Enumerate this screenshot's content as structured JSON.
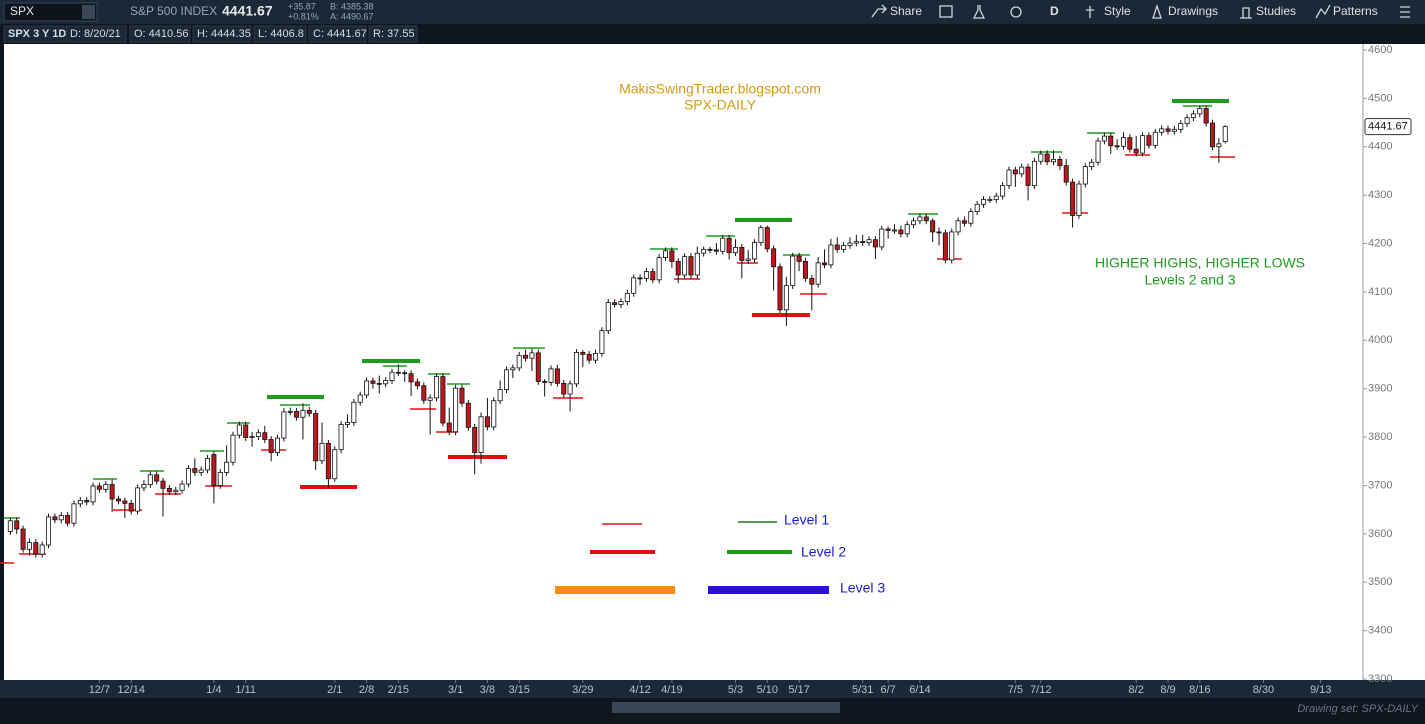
{
  "toolbar": {
    "symbol": "SPX",
    "description": "S&P 500 INDEX",
    "last": "4441.67",
    "change": "+35.87",
    "change_pct": "+0.81%",
    "bid": "B: 4385.38",
    "ask": "A: 4490.67",
    "buttons": [
      "Share",
      "D",
      "Style",
      "Drawings",
      "Studies",
      "Patterns"
    ]
  },
  "info": [
    "SPX 3 Y 1D",
    "D: 8/20/21",
    "O: 4410.56",
    "H: 4444.35",
    "L: 4406.8",
    "C: 4441.67",
    "R: 37.55"
  ],
  "footer": "Drawing set: SPX-DAILY",
  "chart_data": {
    "type": "candlestick",
    "annotations": [
      "MakisSwingTrader.blogspot.com",
      "SPX-DAILY",
      "HIGHER HIGHS, HIGHER LOWS",
      "Levels 2 and 3"
    ],
    "legend": [
      "Level 1",
      "Level 2",
      "Level 3"
    ],
    "up_color": "#ffffff",
    "down_color": "#c0161b",
    "wick_color": "#111111",
    "ylim": [
      3300,
      4600
    ],
    "yticks": [
      3300,
      3400,
      3500,
      3600,
      3700,
      3800,
      3900,
      4000,
      4100,
      4200,
      4300,
      4400,
      4500,
      4600
    ],
    "xlim": [
      -1,
      212.5
    ],
    "xticks": [
      {
        "value": 14,
        "label": "12/7"
      },
      {
        "value": 19,
        "label": "12/14"
      },
      {
        "value": 32,
        "label": "1/4"
      },
      {
        "value": 37,
        "label": "1/11"
      },
      {
        "value": 51,
        "label": "2/1"
      },
      {
        "value": 56,
        "label": "2/8"
      },
      {
        "value": 61,
        "label": "2/15"
      },
      {
        "value": 70,
        "label": "3/1"
      },
      {
        "value": 75,
        "label": "3/8"
      },
      {
        "value": 80,
        "label": "3/15"
      },
      {
        "value": 90,
        "label": "3/29"
      },
      {
        "value": 99,
        "label": "4/12"
      },
      {
        "value": 104,
        "label": "4/19"
      },
      {
        "value": 114,
        "label": "5/3"
      },
      {
        "value": 119,
        "label": "5/10"
      },
      {
        "value": 124,
        "label": "5/17"
      },
      {
        "value": 134,
        "label": "5/31"
      },
      {
        "value": 138,
        "label": "6/7"
      },
      {
        "value": 143,
        "label": "6/14"
      },
      {
        "value": 158,
        "label": "7/5"
      },
      {
        "value": 162,
        "label": "7/12"
      },
      {
        "value": 177,
        "label": "8/2"
      },
      {
        "value": 182,
        "label": "8/9"
      },
      {
        "value": 187,
        "label": "8/16"
      },
      {
        "value": 197,
        "label": "8/30"
      },
      {
        "value": 206,
        "label": "9/13"
      }
    ],
    "candles": {
      "open": [
        3605,
        3627,
        3610,
        3568,
        3582,
        3558,
        3577,
        3635,
        3629,
        3638,
        3622,
        3662,
        3669,
        3666,
        3699,
        3692,
        3702,
        3672,
        3668,
        3663,
        3647,
        3695,
        3702,
        3722,
        3709,
        3694,
        3687,
        3690,
        3703,
        3735,
        3727,
        3732,
        3764,
        3700,
        3727,
        3748,
        3804,
        3825,
        3799,
        3801,
        3809,
        3795,
        3768,
        3798,
        3852,
        3853,
        3841,
        3855,
        3849,
        3751,
        3787,
        3714,
        3774,
        3826,
        3830,
        3872,
        3887,
        3916,
        3911,
        3910,
        3917,
        3934,
        3933,
        3931,
        3914,
        3906,
        3876,
        3881,
        3925,
        3829,
        3811,
        3901,
        3870,
        3820,
        3768,
        3842,
        3821,
        3875,
        3898,
        3939,
        3943,
        3969,
        3963,
        3974,
        3915,
        3913,
        3941,
        3911,
        3889,
        3910,
        3975,
        3971,
        3959,
        3973,
        4020,
        4078,
        4074,
        4080,
        4097,
        4129,
        4128,
        4142,
        4125,
        4171,
        4185,
        4163,
        4135,
        4173,
        4135,
        4180,
        4188,
        4187,
        4184,
        4211,
        4181,
        4192,
        4165,
        4168,
        4202,
        4233,
        4189,
        4152,
        4063,
        4113,
        4174,
        4163,
        4128,
        4116,
        4160,
        4156,
        4197,
        4188,
        4196,
        4201,
        4204,
        4202,
        4208,
        4193,
        4230,
        4227,
        4228,
        4220,
        4239,
        4247,
        4255,
        4247,
        4224,
        4222,
        4166,
        4224,
        4247,
        4242,
        4266,
        4281,
        4291,
        4291,
        4298,
        4320,
        4352,
        4344,
        4358,
        4320,
        4370,
        4385,
        4369,
        4374,
        4361,
        4327,
        4258,
        4323,
        4359,
        4368,
        4412,
        4422,
        4402,
        4401,
        4419,
        4395,
        4387,
        4423,
        4403,
        4430,
        4437,
        4432,
        4436,
        4448,
        4460,
        4468,
        4479,
        4449,
        4400,
        4410.56
      ],
      "high": [
        3634,
        3634,
        3617,
        3590,
        3589,
        3584,
        3642,
        3642,
        3645,
        3645,
        3669,
        3676,
        3676,
        3706,
        3706,
        3709,
        3712,
        3679,
        3675,
        3670,
        3702,
        3711,
        3729,
        3729,
        3716,
        3701,
        3697,
        3710,
        3742,
        3756,
        3739,
        3763,
        3770,
        3734,
        3783,
        3811,
        3832,
        3832,
        3811,
        3816,
        3823,
        3802,
        3805,
        3860,
        3861,
        3860,
        3870,
        3862,
        3856,
        3830,
        3794,
        3781,
        3833,
        3847,
        3879,
        3894,
        3923,
        3923,
        3927,
        3924,
        3941,
        3950,
        3938,
        3938,
        3921,
        3913,
        3888,
        3932,
        3932,
        3861,
        3908,
        3908,
        3877,
        3827,
        3851,
        3881,
        3882,
        3917,
        3946,
        3950,
        3976,
        3981,
        3983,
        3981,
        3920,
        3948,
        3949,
        3918,
        3917,
        3982,
        3980,
        3978,
        3981,
        4027,
        4085,
        4085,
        4087,
        4104,
        4136,
        4136,
        4149,
        4149,
        4178,
        4192,
        4192,
        4170,
        4180,
        4180,
        4194,
        4194,
        4193,
        4201,
        4218,
        4218,
        4209,
        4199,
        4187,
        4209,
        4238,
        4237,
        4196,
        4159,
        4131,
        4181,
        4181,
        4170,
        4135,
        4172,
        4188,
        4210,
        4213,
        4203,
        4213,
        4218,
        4218,
        4215,
        4215,
        4237,
        4235,
        4240,
        4237,
        4246,
        4254,
        4262,
        4262,
        4252,
        4233,
        4229,
        4231,
        4254,
        4256,
        4273,
        4288,
        4298,
        4298,
        4305,
        4327,
        4359,
        4359,
        4365,
        4365,
        4377,
        4392,
        4393,
        4393,
        4381,
        4375,
        4334,
        4330,
        4366,
        4375,
        4419,
        4429,
        4429,
        4416,
        4430,
        4426,
        4422,
        4430,
        4430,
        4437,
        4444,
        4444,
        4443,
        4455,
        4467,
        4475,
        4486,
        4486,
        4456,
        4418,
        4444.35
      ],
      "low": [
        3598,
        3600,
        3561,
        3555,
        3551,
        3551,
        3570,
        3622,
        3622,
        3615,
        3615,
        3655,
        3659,
        3659,
        3685,
        3685,
        3645,
        3661,
        3633,
        3640,
        3640,
        3688,
        3695,
        3702,
        3636,
        3680,
        3680,
        3683,
        3696,
        3720,
        3720,
        3725,
        3663,
        3693,
        3720,
        3741,
        3797,
        3792,
        3780,
        3794,
        3788,
        3750,
        3761,
        3791,
        3845,
        3834,
        3795,
        3842,
        3732,
        3744,
        3694,
        3707,
        3767,
        3819,
        3823,
        3865,
        3880,
        3900,
        3890,
        3903,
        3910,
        3926,
        3914,
        3885,
        3899,
        3869,
        3805,
        3874,
        3822,
        3804,
        3804,
        3863,
        3813,
        3723,
        3745,
        3814,
        3814,
        3868,
        3891,
        3922,
        3936,
        3956,
        3936,
        3908,
        3884,
        3906,
        3904,
        3882,
        3853,
        3903,
        3945,
        3952,
        3952,
        3966,
        4013,
        4068,
        4067,
        4073,
        4090,
        4114,
        4121,
        4118,
        4118,
        4164,
        4150,
        4118,
        4128,
        4128,
        4128,
        4173,
        4180,
        4177,
        4177,
        4167,
        4174,
        4128,
        4158,
        4161,
        4195,
        4182,
        4103,
        4056,
        4030,
        4106,
        4143,
        4121,
        4062,
        4109,
        4149,
        4149,
        4181,
        4181,
        4189,
        4194,
        4195,
        4195,
        4168,
        4186,
        4210,
        4220,
        4213,
        4213,
        4232,
        4240,
        4240,
        4203,
        4196,
        4159,
        4159,
        4217,
        4235,
        4235,
        4259,
        4274,
        4284,
        4284,
        4291,
        4313,
        4317,
        4337,
        4289,
        4313,
        4363,
        4362,
        4362,
        4352,
        4320,
        4233,
        4251,
        4316,
        4352,
        4361,
        4405,
        4385,
        4394,
        4394,
        4388,
        4380,
        4380,
        4396,
        4396,
        4423,
        4425,
        4425,
        4429,
        4441,
        4453,
        4461,
        4442,
        4393,
        4367,
        4406.8
      ],
      "close": [
        3627,
        3610,
        3568,
        3582,
        3558,
        3577,
        3635,
        3629,
        3638,
        3622,
        3662,
        3669,
        3666,
        3699,
        3692,
        3702,
        3672,
        3668,
        3663,
        3647,
        3695,
        3702,
        3722,
        3709,
        3694,
        3687,
        3690,
        3703,
        3735,
        3727,
        3732,
        3756,
        3700,
        3727,
        3748,
        3804,
        3825,
        3799,
        3801,
        3809,
        3795,
        3768,
        3798,
        3852,
        3853,
        3841,
        3855,
        3849,
        3751,
        3787,
        3714,
        3774,
        3826,
        3830,
        3872,
        3887,
        3916,
        3911,
        3910,
        3917,
        3934,
        3933,
        3931,
        3914,
        3906,
        3876,
        3881,
        3925,
        3829,
        3811,
        3901,
        3870,
        3820,
        3768,
        3842,
        3821,
        3875,
        3898,
        3939,
        3943,
        3969,
        3963,
        3974,
        3915,
        3913,
        3941,
        3911,
        3889,
        3910,
        3975,
        3971,
        3959,
        3973,
        4020,
        4078,
        4074,
        4080,
        4097,
        4129,
        4128,
        4142,
        4125,
        4171,
        4185,
        4163,
        4135,
        4173,
        4135,
        4180,
        4188,
        4187,
        4184,
        4211,
        4181,
        4192,
        4165,
        4168,
        4202,
        4233,
        4189,
        4152,
        4063,
        4113,
        4174,
        4163,
        4128,
        4116,
        4160,
        4156,
        4197,
        4188,
        4196,
        4201,
        4204,
        4202,
        4208,
        4193,
        4230,
        4227,
        4228,
        4220,
        4239,
        4247,
        4255,
        4247,
        4224,
        4222,
        4166,
        4224,
        4247,
        4242,
        4266,
        4281,
        4291,
        4291,
        4298,
        4320,
        4352,
        4344,
        4358,
        4320,
        4370,
        4385,
        4369,
        4374,
        4361,
        4327,
        4258,
        4323,
        4359,
        4368,
        4412,
        4422,
        4402,
        4401,
        4419,
        4395,
        4387,
        4423,
        4403,
        4430,
        4437,
        4432,
        4436,
        4448,
        4460,
        4468,
        4479,
        4449,
        4400,
        4406,
        4441.67
      ]
    }
  }
}
